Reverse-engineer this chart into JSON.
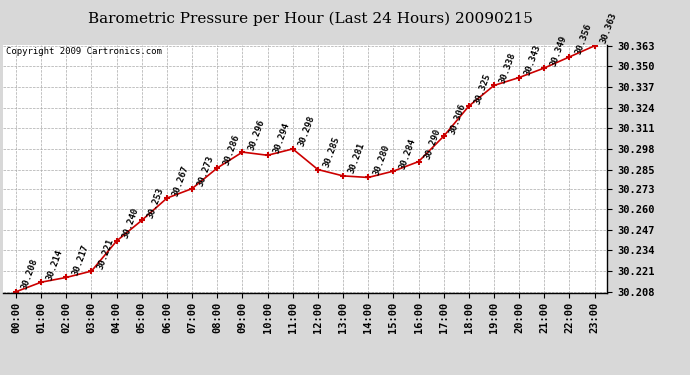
{
  "title": "Barometric Pressure per Hour (Last 24 Hours) 20090215",
  "copyright": "Copyright 2009 Cartronics.com",
  "hours": [
    "00:00",
    "01:00",
    "02:00",
    "03:00",
    "04:00",
    "05:00",
    "06:00",
    "07:00",
    "08:00",
    "09:00",
    "10:00",
    "11:00",
    "12:00",
    "13:00",
    "14:00",
    "15:00",
    "16:00",
    "17:00",
    "18:00",
    "19:00",
    "20:00",
    "21:00",
    "22:00",
    "23:00"
  ],
  "values": [
    30.208,
    30.214,
    30.217,
    30.221,
    30.24,
    30.253,
    30.267,
    30.273,
    30.286,
    30.296,
    30.294,
    30.298,
    30.285,
    30.281,
    30.28,
    30.284,
    30.29,
    30.306,
    30.325,
    30.338,
    30.343,
    30.349,
    30.356,
    30.363
  ],
  "ylim_min": 30.208,
  "ylim_max": 30.363,
  "yticks": [
    30.208,
    30.221,
    30.234,
    30.247,
    30.26,
    30.273,
    30.285,
    30.298,
    30.311,
    30.324,
    30.337,
    30.35,
    30.363
  ],
  "line_color": "#cc0000",
  "marker_color": "#cc0000",
  "bg_color": "#d8d8d8",
  "plot_bg_color": "#ffffff",
  "grid_color": "#aaaaaa",
  "title_fontsize": 11,
  "label_fontsize": 6.5,
  "tick_fontsize": 7.5,
  "copyright_fontsize": 6.5
}
